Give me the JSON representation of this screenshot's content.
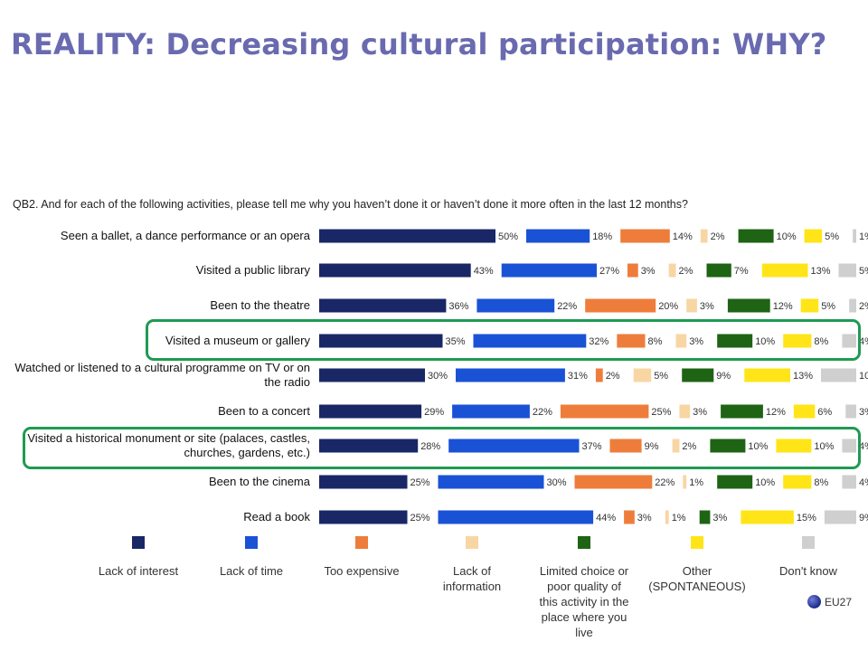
{
  "title": "REALITY: Decreasing cultural participation: WHY?",
  "badge": "EU27",
  "colors": {
    "lack_of_interest": "#1a2766",
    "lack_of_time": "#1a52d6",
    "too_expensive": "#ee7d3c",
    "lack_of_information": "#f8d6a4",
    "limited_choice": "#1e6414",
    "other": "#ffe418",
    "dont_know": "#cfcfcf",
    "highlight": "#1f9a52"
  },
  "chart_data": {
    "type": "bar",
    "question": "QB2. And for each of the following activities, please tell me why you haven’t done it or haven’t done it more often in the last 12 months?",
    "categories": [
      "Seen a ballet, a dance performance or an opera",
      "Visited a public library",
      "Been to the theatre",
      "Visited a museum or gallery",
      "Watched or listened to a cultural programme on TV or on the radio",
      "Been to a concert",
      "Visited a historical monument or site (palaces, castles, churches, gardens, etc.)",
      "Been to the cinema",
      "Read a book"
    ],
    "highlighted": [
      "Visited a museum or gallery",
      "Visited a historical monument or site (palaces, castles, churches, gardens, etc.)"
    ],
    "series": [
      {
        "name": "Lack of interest",
        "color": "#1a2766",
        "values": [
          50,
          43,
          36,
          35,
          30,
          29,
          28,
          25,
          25
        ]
      },
      {
        "name": "Lack of time",
        "color": "#1a52d6",
        "values": [
          18,
          27,
          22,
          32,
          31,
          22,
          37,
          30,
          44
        ]
      },
      {
        "name": "Too expensive",
        "color": "#ee7d3c",
        "values": [
          14,
          3,
          20,
          8,
          2,
          25,
          9,
          22,
          3
        ]
      },
      {
        "name": "Lack of information",
        "color": "#f8d6a4",
        "values": [
          2,
          2,
          3,
          3,
          5,
          3,
          2,
          1,
          1
        ]
      },
      {
        "name": "Limited choice or poor quality of this activity in the place where you live",
        "color": "#1e6414",
        "values": [
          10,
          7,
          12,
          10,
          9,
          12,
          10,
          10,
          3
        ]
      },
      {
        "name": "Other (SPONTANEOUS)",
        "color": "#ffe418",
        "values": [
          5,
          13,
          5,
          8,
          13,
          6,
          10,
          8,
          15
        ]
      },
      {
        "name": "Don't know",
        "color": "#cfcfcf",
        "values": [
          1,
          5,
          2,
          4,
          10,
          3,
          4,
          4,
          9
        ]
      }
    ],
    "value_suffix": "%",
    "legend_position": "bottom"
  }
}
